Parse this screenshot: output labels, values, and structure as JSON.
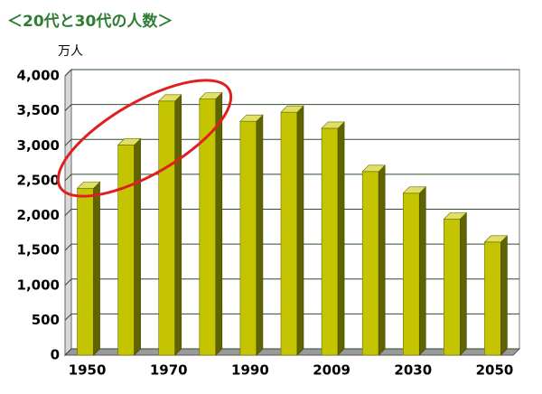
{
  "chart_data": {
    "type": "bar3d",
    "title": "＜20代と30代の人数＞",
    "y_label": "万人",
    "categories": [
      "1950",
      null,
      "1970",
      null,
      "1990",
      null,
      "2009",
      null,
      "2030",
      null,
      "2050"
    ],
    "values": [
      2390,
      3010,
      3640,
      3670,
      3350,
      3480,
      3250,
      2630,
      2320,
      1950,
      1620
    ],
    "color": "#c4c400",
    "ylim": [
      0,
      4000
    ],
    "yticks": [
      0,
      500,
      {
        "value": 1000,
        "label": "1,000"
      },
      {
        "value": 1500,
        "label": "1,500"
      },
      {
        "value": 2000,
        "label": "2,000"
      },
      {
        "value": 2500,
        "label": "2,500"
      },
      {
        "value": 3000,
        "label": "3,000"
      },
      {
        "value": 3500,
        "label": "3,500"
      },
      {
        "value": 4000,
        "label": "4,000"
      }
    ],
    "grid": true
  }
}
